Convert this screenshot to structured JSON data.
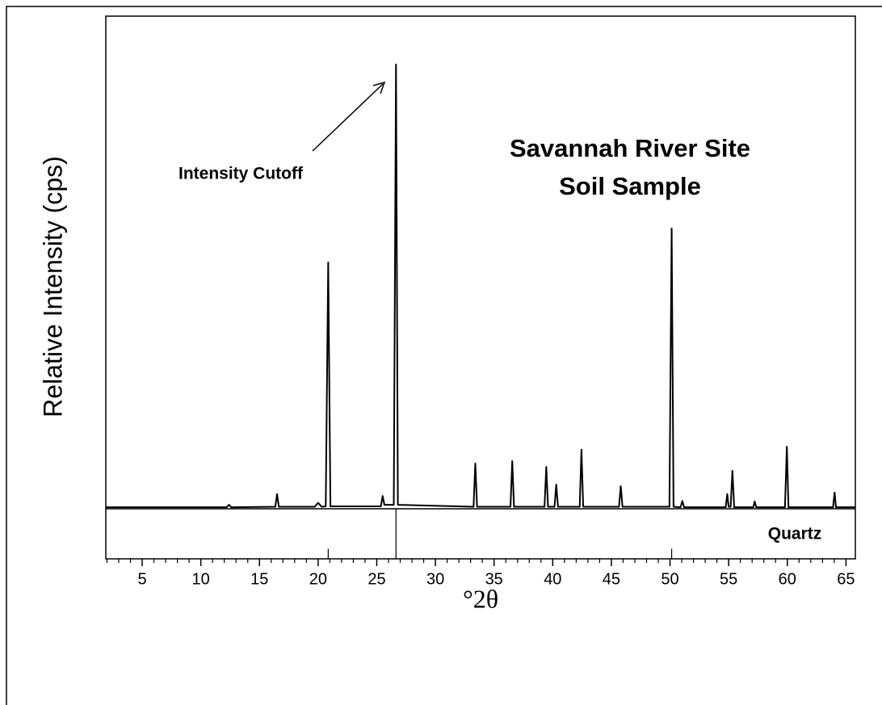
{
  "chart_data": {
    "type": "line",
    "title": [
      "Savannah River Site",
      "Soil Sample"
    ],
    "xlabel": "°2θ",
    "ylabel": "Relative Intensity (cps)",
    "annotation": "Intensity Cutoff",
    "reference_label": "Quartz",
    "xlim": [
      1.9,
      65.8
    ],
    "ylim": [
      0,
      100
    ],
    "xticks": [
      5,
      10,
      15,
      20,
      25,
      30,
      35,
      40,
      45,
      50,
      55,
      60,
      65
    ],
    "xminorticks": [
      2,
      3,
      4,
      6,
      7,
      8,
      9,
      11,
      12,
      13,
      14,
      16,
      17,
      18,
      19,
      21,
      22,
      23,
      24,
      26,
      27,
      28,
      29,
      31,
      32,
      33,
      34,
      36,
      37,
      38,
      39,
      41,
      42,
      43,
      44,
      46,
      47,
      48,
      49,
      51,
      52,
      53,
      54,
      56,
      57,
      58,
      59,
      61,
      62,
      63,
      64
    ],
    "series": [
      {
        "color": "#000000",
        "x": [
          1.9,
          12.2,
          12.4,
          12.6,
          16.35,
          16.5,
          16.65,
          19.7,
          20.0,
          20.3,
          20.65,
          20.86,
          21.05,
          25.35,
          25.5,
          25.65,
          26.45,
          26.64,
          26.8,
          33.25,
          33.4,
          33.55,
          36.4,
          36.55,
          36.7,
          39.3,
          39.45,
          39.6,
          40.15,
          40.3,
          40.45,
          42.3,
          42.45,
          42.6,
          45.65,
          45.8,
          45.95,
          49.95,
          50.14,
          50.3,
          50.9,
          51.05,
          51.2,
          54.75,
          54.88,
          55.0,
          55.17,
          55.32,
          55.47,
          57.1,
          57.22,
          57.35,
          59.8,
          59.96,
          60.1,
          63.9,
          64.03,
          64.15,
          65.8
        ],
        "values": [
          0.3,
          0.3,
          0.8,
          0.3,
          0.4,
          3.0,
          0.4,
          0.4,
          1.2,
          0.4,
          0.5,
          50.0,
          0.5,
          0.5,
          2.6,
          0.8,
          0.8,
          90.2,
          0.8,
          0.4,
          9.2,
          0.4,
          0.4,
          9.7,
          0.4,
          0.4,
          8.5,
          0.4,
          0.4,
          4.9,
          0.4,
          0.4,
          12.0,
          0.4,
          0.4,
          4.6,
          0.4,
          0.4,
          56.9,
          0.4,
          0.3,
          1.6,
          0.3,
          0.3,
          3.0,
          0.4,
          0.4,
          7.7,
          0.3,
          0.3,
          1.5,
          0.3,
          0.3,
          12.6,
          0.3,
          0.3,
          3.3,
          0.3,
          0.3
        ]
      }
    ],
    "reference": {
      "x": [
        20.86,
        26.64,
        50.14
      ],
      "values": [
        20,
        100,
        20
      ]
    }
  }
}
